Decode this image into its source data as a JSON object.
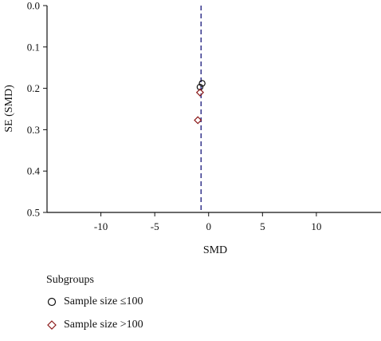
{
  "chart_data": {
    "type": "scatter",
    "xlabel": "SMD",
    "ylabel": "SE (SMD)",
    "xlim": [
      -15,
      16
    ],
    "ylim": [
      0.0,
      0.5
    ],
    "y_inverted": true,
    "x_ticks": [
      -10,
      -5,
      0,
      5,
      10
    ],
    "x_tick_labels": [
      "-10",
      "-5",
      "0",
      "5",
      "10"
    ],
    "y_ticks": [
      0.0,
      0.1,
      0.2,
      0.3,
      0.4,
      0.5
    ],
    "y_tick_labels": [
      "0.0",
      "0.1",
      "0.2",
      "0.3",
      "0.4",
      "0.5"
    ],
    "reference_line": {
      "x": -0.7,
      "style": "dashed",
      "color": "#3b3b8f"
    },
    "series": [
      {
        "name": "Sample size ≤100",
        "marker": "circle",
        "color": "#111111",
        "points": [
          {
            "x": -0.6,
            "y": 0.188
          },
          {
            "x": -0.8,
            "y": 0.197
          }
        ]
      },
      {
        "name": "Sample size >100",
        "marker": "diamond",
        "color": "#8b1a1a",
        "points": [
          {
            "x": -0.8,
            "y": 0.21
          },
          {
            "x": -1.0,
            "y": 0.277
          }
        ]
      }
    ],
    "legend": {
      "title": "Subgroups",
      "placement": "bottom-left"
    }
  }
}
